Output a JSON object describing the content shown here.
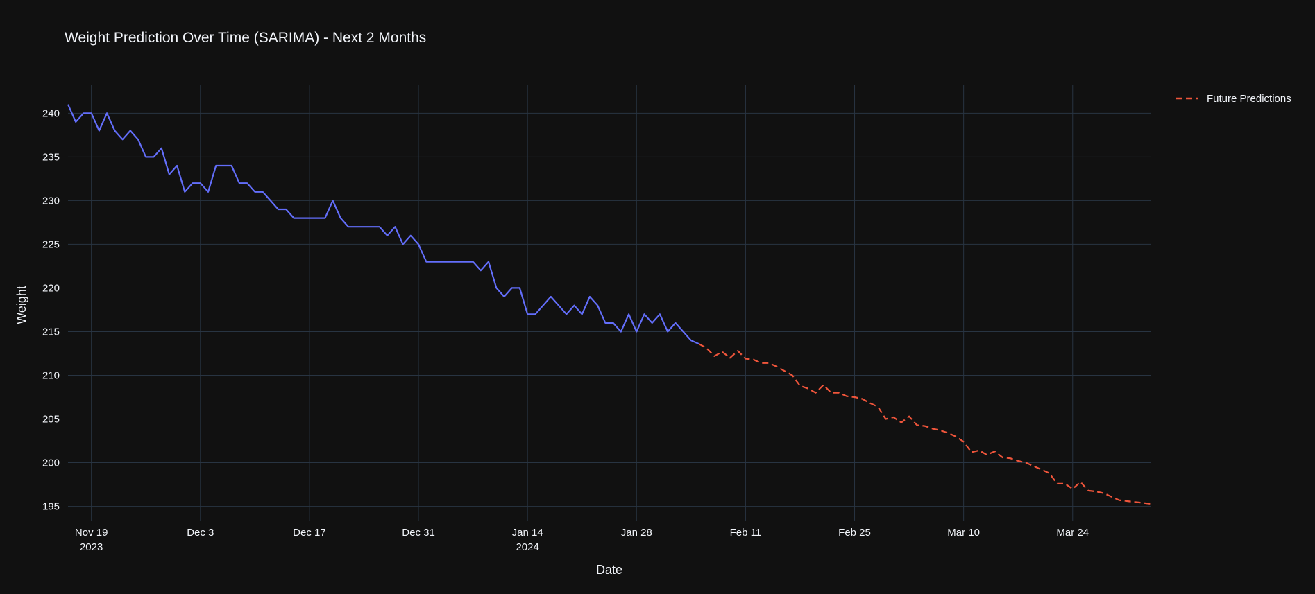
{
  "chart_data": {
    "type": "line",
    "title": "Weight Prediction Over Time (SARIMA) - Next 2 Months",
    "xlabel": "Date",
    "ylabel": "Weight",
    "grid": true,
    "legend_position": "top-right",
    "x_range": [
      "2023-11-16",
      "2024-04-03"
    ],
    "ylim": [
      193.3,
      243.2
    ],
    "y_ticks": [
      195,
      200,
      205,
      210,
      215,
      220,
      225,
      230,
      235,
      240
    ],
    "x_ticks": [
      {
        "date": "2023-11-19",
        "label": "Nov 19",
        "sublabel": "2023"
      },
      {
        "date": "2023-12-03",
        "label": "Dec 3",
        "sublabel": ""
      },
      {
        "date": "2023-12-17",
        "label": "Dec 17",
        "sublabel": ""
      },
      {
        "date": "2023-12-31",
        "label": "Dec 31",
        "sublabel": ""
      },
      {
        "date": "2024-01-14",
        "label": "Jan 14",
        "sublabel": "2024"
      },
      {
        "date": "2024-01-28",
        "label": "Jan 28",
        "sublabel": ""
      },
      {
        "date": "2024-02-11",
        "label": "Feb 11",
        "sublabel": ""
      },
      {
        "date": "2024-02-25",
        "label": "Feb 25",
        "sublabel": ""
      },
      {
        "date": "2024-03-10",
        "label": "Mar 10",
        "sublabel": ""
      },
      {
        "date": "2024-03-24",
        "label": "Mar 24",
        "sublabel": ""
      }
    ],
    "series": [
      {
        "color": "#636efa",
        "dash": "solid",
        "show_in_legend": false,
        "x": [
          "2023-11-16",
          "2023-11-17",
          "2023-11-18",
          "2023-11-19",
          "2023-11-20",
          "2023-11-21",
          "2023-11-22",
          "2023-11-23",
          "2023-11-24",
          "2023-11-25",
          "2023-11-26",
          "2023-11-27",
          "2023-11-28",
          "2023-11-29",
          "2023-11-30",
          "2023-12-01",
          "2023-12-02",
          "2023-12-03",
          "2023-12-04",
          "2023-12-05",
          "2023-12-06",
          "2023-12-07",
          "2023-12-08",
          "2023-12-09",
          "2023-12-10",
          "2023-12-11",
          "2023-12-12",
          "2023-12-13",
          "2023-12-14",
          "2023-12-15",
          "2023-12-16",
          "2023-12-17",
          "2023-12-18",
          "2023-12-19",
          "2023-12-20",
          "2023-12-21",
          "2023-12-22",
          "2023-12-23",
          "2023-12-24",
          "2023-12-25",
          "2023-12-26",
          "2023-12-27",
          "2023-12-28",
          "2023-12-29",
          "2023-12-30",
          "2023-12-31",
          "2024-01-01",
          "2024-01-02",
          "2024-01-03",
          "2024-01-04",
          "2024-01-05",
          "2024-01-06",
          "2024-01-07",
          "2024-01-08",
          "2024-01-09",
          "2024-01-10",
          "2024-01-11",
          "2024-01-12",
          "2024-01-13",
          "2024-01-14",
          "2024-01-15",
          "2024-01-16",
          "2024-01-17",
          "2024-01-18",
          "2024-01-19",
          "2024-01-20",
          "2024-01-21",
          "2024-01-22",
          "2024-01-23",
          "2024-01-24",
          "2024-01-25",
          "2024-01-26",
          "2024-01-27",
          "2024-01-28",
          "2024-01-29",
          "2024-01-30",
          "2024-01-31",
          "2024-02-01",
          "2024-02-02",
          "2024-02-03",
          "2024-02-04",
          "2024-02-05"
        ],
        "y": [
          241,
          239,
          240,
          240,
          238,
          240,
          238,
          237,
          238,
          237,
          235,
          235,
          236,
          233,
          234,
          231,
          232,
          232,
          231,
          234,
          234,
          234,
          232,
          232,
          231,
          231,
          230,
          229,
          229,
          228,
          228,
          228,
          228,
          228,
          230,
          228,
          227,
          227,
          227,
          227,
          227,
          226,
          227,
          225,
          226,
          225,
          223,
          223,
          223,
          223,
          223,
          223,
          223,
          222,
          223,
          220,
          219,
          220,
          220,
          217,
          217,
          218,
          219,
          218,
          217,
          218,
          217,
          219,
          218,
          216,
          216,
          215,
          217,
          215,
          217,
          216,
          217,
          215,
          216,
          215,
          214,
          213.6
        ]
      },
      {
        "name": "Future Predictions",
        "color": "#ef553b",
        "dash": "dash",
        "show_in_legend": true,
        "x": [
          "2024-02-05",
          "2024-02-06",
          "2024-02-07",
          "2024-02-08",
          "2024-02-09",
          "2024-02-10",
          "2024-02-11",
          "2024-02-12",
          "2024-02-13",
          "2024-02-14",
          "2024-02-15",
          "2024-02-16",
          "2024-02-17",
          "2024-02-18",
          "2024-02-19",
          "2024-02-20",
          "2024-02-21",
          "2024-02-22",
          "2024-02-23",
          "2024-02-24",
          "2024-02-25",
          "2024-02-26",
          "2024-02-27",
          "2024-02-28",
          "2024-02-29",
          "2024-03-01",
          "2024-03-02",
          "2024-03-03",
          "2024-03-04",
          "2024-03-05",
          "2024-03-06",
          "2024-03-07",
          "2024-03-08",
          "2024-03-09",
          "2024-03-10",
          "2024-03-11",
          "2024-03-12",
          "2024-03-13",
          "2024-03-14",
          "2024-03-15",
          "2024-03-16",
          "2024-03-17",
          "2024-03-18",
          "2024-03-19",
          "2024-03-20",
          "2024-03-21",
          "2024-03-22",
          "2024-03-23",
          "2024-03-24",
          "2024-03-25",
          "2024-03-26",
          "2024-03-27",
          "2024-03-28",
          "2024-03-29",
          "2024-03-30",
          "2024-03-31",
          "2024-04-01",
          "2024-04-02",
          "2024-04-03"
        ],
        "y": [
          213.6,
          213.1,
          212.2,
          212.7,
          212.0,
          212.8,
          211.9,
          211.8,
          211.4,
          211.4,
          211.0,
          210.5,
          210.0,
          208.8,
          208.5,
          208.0,
          208.9,
          208.0,
          208.0,
          207.6,
          207.5,
          207.3,
          206.8,
          206.4,
          205.0,
          205.2,
          204.6,
          205.3,
          204.3,
          204.2,
          203.9,
          203.7,
          203.4,
          203.0,
          202.4,
          201.2,
          201.4,
          200.9,
          201.3,
          200.6,
          200.5,
          200.2,
          200.0,
          199.6,
          199.2,
          198.8,
          197.6,
          197.6,
          197.0,
          197.8,
          196.8,
          196.7,
          196.5,
          196.1,
          195.7,
          195.6,
          195.5,
          195.4,
          195.3
        ]
      }
    ]
  }
}
